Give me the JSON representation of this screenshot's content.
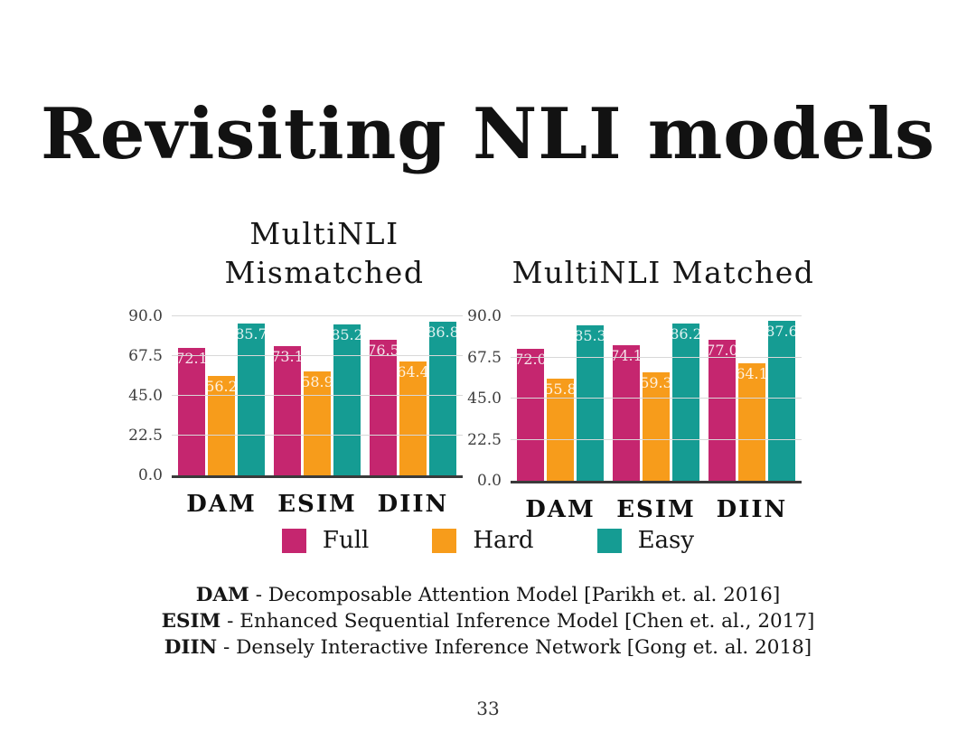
{
  "slide": {
    "title": "Revisiting NLI models",
    "page_number": "33"
  },
  "legend": {
    "items": [
      {
        "label": "Full",
        "color": "#C5266F"
      },
      {
        "label": "Hard",
        "color": "#F79C1B"
      },
      {
        "label": "Easy",
        "color": "#159C93"
      }
    ]
  },
  "footnotes": [
    {
      "abbr": "DAM",
      "rest": " - Decomposable Attention Model [Parikh et. al. 2016]"
    },
    {
      "abbr": "ESIM",
      "rest": " - Enhanced Sequential Inference Model [Chen et. al., 2017]"
    },
    {
      "abbr": "DIIN",
      "rest": " - Densely Interactive Inference Network [Gong et. al. 2018]"
    }
  ],
  "chart_data": [
    {
      "type": "bar",
      "title": "MultiNLI\nMismatched",
      "categories": [
        "DAM",
        "ESIM",
        "DIIN"
      ],
      "series": [
        {
          "name": "Full",
          "color": "#C5266F",
          "values": [
            72.1,
            73.1,
            76.5
          ]
        },
        {
          "name": "Hard",
          "color": "#F79C1B",
          "values": [
            56.2,
            58.9,
            64.4
          ]
        },
        {
          "name": "Easy",
          "color": "#159C93",
          "values": [
            85.7,
            85.2,
            86.8
          ]
        }
      ],
      "yticks": [
        90.0,
        67.5,
        45.0,
        22.5,
        0.0
      ],
      "ylim": [
        0,
        90
      ],
      "grid": true,
      "value_labels": "inside-top",
      "legend_position": "bottom-shared"
    },
    {
      "type": "bar",
      "title": "MultiNLI Matched",
      "categories": [
        "DAM",
        "ESIM",
        "DIIN"
      ],
      "series": [
        {
          "name": "Full",
          "color": "#C5266F",
          "values": [
            72.0,
            74.1,
            77.0
          ]
        },
        {
          "name": "Hard",
          "color": "#F79C1B",
          "values": [
            55.8,
            59.3,
            64.1
          ]
        },
        {
          "name": "Easy",
          "color": "#159C93",
          "values": [
            85.3,
            86.2,
            87.6
          ]
        }
      ],
      "yticks": [
        90.0,
        67.5,
        45.0,
        22.5,
        0.0
      ],
      "ylim": [
        0,
        90
      ],
      "grid": true,
      "value_labels": "inside-top",
      "legend_position": "bottom-shared"
    }
  ]
}
